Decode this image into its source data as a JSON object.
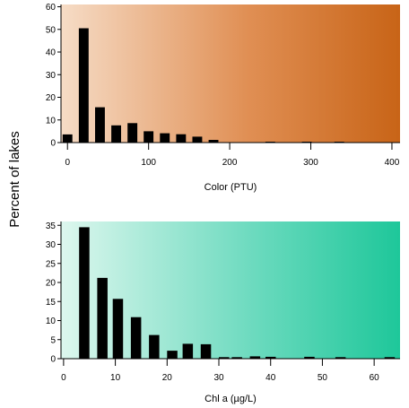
{
  "shared_ylabel": "Percent of lakes",
  "chart_data": [
    {
      "type": "bar",
      "xlabel": "Color (PTU)",
      "ylabel": "Percent of lakes",
      "xlim": [
        -8,
        410
      ],
      "ylim": [
        0,
        61
      ],
      "xticks": [
        0,
        100,
        200,
        300,
        400
      ],
      "yticks": [
        0,
        10,
        20,
        30,
        40,
        50,
        60
      ],
      "grid": false,
      "bar_width": 12,
      "x": [
        0,
        20,
        40,
        60,
        80,
        100,
        120,
        140,
        160,
        180,
        250,
        295,
        335
      ],
      "values": [
        3.6,
        50.5,
        15.6,
        7.6,
        8.6,
        5.0,
        4.1,
        3.7,
        2.6,
        1.2,
        0.4,
        0.4,
        0.4
      ],
      "background_gradient": [
        "#f6dcc6",
        "#e08f54",
        "#c86417"
      ]
    },
    {
      "type": "bar",
      "xlabel": "Chl a (µg/L)",
      "ylabel": "Percent of lakes",
      "xlim": [
        -0.5,
        65
      ],
      "ylim": [
        0,
        36
      ],
      "xticks": [
        0,
        10,
        20,
        30,
        40,
        50,
        60
      ],
      "yticks": [
        0,
        5,
        10,
        15,
        20,
        25,
        30,
        35
      ],
      "grid": false,
      "bar_width": 2,
      "x": [
        4,
        7.5,
        10.5,
        14,
        17.5,
        21,
        24,
        27.5,
        31,
        33.5,
        37,
        40,
        47.5,
        53.5,
        63
      ],
      "values": [
        34.5,
        21.2,
        15.7,
        10.9,
        6.2,
        2.1,
        3.9,
        3.8,
        0.4,
        0.4,
        0.6,
        0.5,
        0.5,
        0.4,
        0.4
      ],
      "background_gradient": [
        "#ddf7ee",
        "#6fdbc0",
        "#1ec79a"
      ]
    }
  ]
}
